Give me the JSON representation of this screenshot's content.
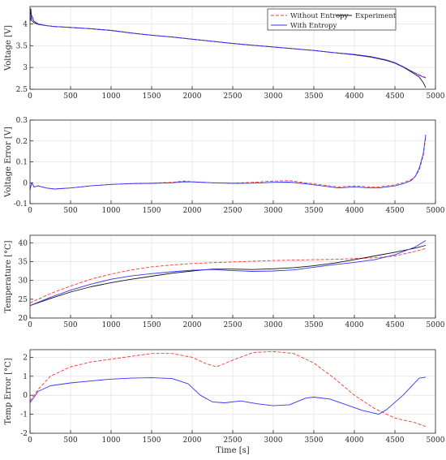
{
  "chart_data": [
    {
      "type": "line",
      "xlabel": "",
      "ylabel": "Voltage [V]",
      "xlim": [
        0,
        5000
      ],
      "ylim": [
        2.5,
        4.4
      ],
      "xticks": [
        0,
        500,
        1000,
        1500,
        2000,
        2500,
        3000,
        3500,
        4000,
        4500,
        5000
      ],
      "yticks": [
        2.5,
        3,
        3.5,
        4
      ],
      "grid": true,
      "legend": {
        "placement": "top-right",
        "columns": 2
      },
      "series": [
        {
          "name": "Without Entropy",
          "color": "#ff3333",
          "style": "dashed",
          "x": [
            0,
            20,
            50,
            100,
            200,
            300,
            500,
            750,
            1000,
            1250,
            1500,
            1750,
            2000,
            2250,
            2500,
            2750,
            3000,
            3250,
            3500,
            3750,
            4000,
            4200,
            4400,
            4500,
            4600,
            4700,
            4800,
            4850,
            4880
          ],
          "y": [
            4.05,
            4.2,
            4.06,
            4.0,
            3.96,
            3.94,
            3.92,
            3.89,
            3.85,
            3.79,
            3.74,
            3.7,
            3.65,
            3.6,
            3.55,
            3.51,
            3.47,
            3.43,
            3.39,
            3.34,
            3.3,
            3.25,
            3.17,
            3.11,
            3.02,
            2.92,
            2.83,
            2.79,
            2.77
          ]
        },
        {
          "name": "Experiment",
          "color": "#111111",
          "style": "solid",
          "x": [
            0,
            10,
            20,
            50,
            100,
            200,
            300,
            500,
            750,
            1000,
            1250,
            1500,
            1750,
            2000,
            2250,
            2500,
            2750,
            3000,
            3250,
            3500,
            3750,
            4000,
            4200,
            4400,
            4500,
            4600,
            4700,
            4800,
            4850,
            4880
          ],
          "y": [
            4.1,
            4.35,
            4.08,
            4.03,
            3.99,
            3.96,
            3.94,
            3.92,
            3.89,
            3.85,
            3.79,
            3.74,
            3.7,
            3.65,
            3.6,
            3.55,
            3.51,
            3.47,
            3.43,
            3.39,
            3.34,
            3.29,
            3.24,
            3.16,
            3.1,
            3.01,
            2.9,
            2.78,
            2.65,
            2.54
          ]
        },
        {
          "name": "With Entropy",
          "color": "#3333ff",
          "style": "solid",
          "x": [
            0,
            20,
            50,
            100,
            200,
            300,
            500,
            750,
            1000,
            1250,
            1500,
            1750,
            2000,
            2250,
            2500,
            2750,
            3000,
            3250,
            3500,
            3750,
            4000,
            4200,
            4400,
            4500,
            4600,
            4700,
            4800,
            4850,
            4880
          ],
          "y": [
            4.06,
            4.2,
            4.06,
            4.0,
            3.96,
            3.94,
            3.92,
            3.89,
            3.85,
            3.79,
            3.74,
            3.7,
            3.65,
            3.6,
            3.55,
            3.51,
            3.47,
            3.43,
            3.39,
            3.34,
            3.3,
            3.25,
            3.17,
            3.11,
            3.02,
            2.92,
            2.82,
            2.78,
            2.76
          ]
        }
      ]
    },
    {
      "type": "line",
      "xlabel": "",
      "ylabel": "Voltage Error [V]",
      "xlim": [
        0,
        5000
      ],
      "ylim": [
        -0.1,
        0.3
      ],
      "xticks": [
        0,
        500,
        1000,
        1500,
        2000,
        2500,
        3000,
        3500,
        4000,
        4500,
        5000
      ],
      "yticks": [
        -0.1,
        0,
        0.1,
        0.2,
        0.3
      ],
      "grid": true,
      "series": [
        {
          "color": "#ff3333",
          "style": "dashed",
          "x": [
            0,
            20,
            50,
            100,
            200,
            300,
            500,
            750,
            1000,
            1250,
            1500,
            1750,
            1900,
            2000,
            2250,
            2500,
            2750,
            3000,
            3200,
            3400,
            3600,
            3800,
            4000,
            4200,
            4300,
            4500,
            4600,
            4700,
            4750,
            4800,
            4850,
            4880
          ],
          "y": [
            -0.03,
            0.0,
            -0.02,
            -0.015,
            -0.025,
            -0.03,
            -0.025,
            -0.015,
            -0.008,
            -0.004,
            -0.002,
            0.002,
            0.008,
            0.005,
            0.0,
            -0.002,
            0.002,
            0.008,
            0.01,
            0.0,
            -0.01,
            -0.02,
            -0.015,
            -0.02,
            -0.02,
            -0.01,
            0.0,
            0.015,
            0.03,
            0.06,
            0.13,
            0.22
          ]
        },
        {
          "color": "#3333ff",
          "style": "solid",
          "x": [
            0,
            20,
            50,
            100,
            200,
            300,
            500,
            750,
            1000,
            1250,
            1500,
            1750,
            1900,
            2000,
            2250,
            2500,
            2750,
            3000,
            3200,
            3400,
            3600,
            3800,
            4000,
            4200,
            4300,
            4500,
            4600,
            4700,
            4750,
            4800,
            4850,
            4880
          ],
          "y": [
            -0.035,
            0.0,
            -0.02,
            -0.015,
            -0.025,
            -0.03,
            -0.025,
            -0.015,
            -0.008,
            -0.004,
            -0.003,
            0.0,
            0.005,
            0.004,
            0.0,
            -0.003,
            -0.002,
            0.002,
            0.003,
            -0.005,
            -0.015,
            -0.025,
            -0.02,
            -0.025,
            -0.025,
            -0.015,
            -0.005,
            0.01,
            0.03,
            0.07,
            0.14,
            0.23
          ]
        }
      ]
    },
    {
      "type": "line",
      "xlabel": "",
      "ylabel": "Temperature [°C]",
      "xlim": [
        0,
        5000
      ],
      "ylim": [
        20,
        42
      ],
      "xticks": [
        0,
        500,
        1000,
        1500,
        2000,
        2500,
        3000,
        3500,
        4000,
        4500,
        5000
      ],
      "yticks": [
        20,
        25,
        30,
        35,
        40
      ],
      "grid": true,
      "series": [
        {
          "color": "#ff3333",
          "style": "dashed",
          "x": [
            0,
            250,
            500,
            750,
            1000,
            1250,
            1500,
            1750,
            2000,
            2250,
            2500,
            2750,
            3000,
            3250,
            3500,
            3750,
            4000,
            4250,
            4500,
            4750,
            4880
          ],
          "y": [
            24,
            26.5,
            28.5,
            30.3,
            31.7,
            32.8,
            33.6,
            34.1,
            34.5,
            34.7,
            34.9,
            35.1,
            35.3,
            35.4,
            35.5,
            35.6,
            35.8,
            36.0,
            36.5,
            37.7,
            38.5
          ]
        },
        {
          "color": "#111111",
          "style": "solid",
          "x": [
            0,
            250,
            500,
            750,
            1000,
            1250,
            1500,
            1750,
            2000,
            2250,
            2500,
            2750,
            3000,
            3250,
            3500,
            3750,
            4000,
            4250,
            4500,
            4750,
            4880
          ],
          "y": [
            23.3,
            25.2,
            26.9,
            28.3,
            29.4,
            30.3,
            31.1,
            31.9,
            32.5,
            33.0,
            33.0,
            32.9,
            33.1,
            33.4,
            33.9,
            34.6,
            35.5,
            36.5,
            37.5,
            38.6,
            39.3
          ]
        },
        {
          "color": "#3333ff",
          "style": "solid",
          "x": [
            0,
            250,
            500,
            750,
            1000,
            1250,
            1500,
            1750,
            2000,
            2250,
            2500,
            2750,
            3000,
            3250,
            3500,
            3750,
            4000,
            4250,
            4500,
            4750,
            4880
          ],
          "y": [
            23.3,
            25.5,
            27.4,
            29.0,
            30.3,
            31.2,
            31.8,
            32.3,
            32.7,
            32.9,
            32.6,
            32.4,
            32.5,
            32.8,
            33.5,
            34.2,
            34.8,
            35.5,
            36.8,
            38.9,
            40.6
          ]
        }
      ]
    },
    {
      "type": "line",
      "xlabel": "Time [s]",
      "ylabel": "Temp Error [°C]",
      "xlim": [
        0,
        5000
      ],
      "ylim": [
        -2,
        2.4
      ],
      "xticks": [
        0,
        500,
        1000,
        1500,
        2000,
        2500,
        3000,
        3500,
        4000,
        4500,
        5000
      ],
      "yticks": [
        -2,
        -1,
        0,
        1,
        2
      ],
      "grid": true,
      "series": [
        {
          "color": "#ff3333",
          "style": "dashed",
          "x": [
            0,
            100,
            250,
            500,
            750,
            1000,
            1250,
            1500,
            1750,
            2000,
            2150,
            2300,
            2500,
            2750,
            3000,
            3250,
            3500,
            3750,
            4000,
            4250,
            4500,
            4750,
            4880
          ],
          "y": [
            -0.3,
            0.3,
            1.0,
            1.5,
            1.75,
            1.9,
            2.05,
            2.2,
            2.2,
            2.0,
            1.7,
            1.5,
            1.85,
            2.25,
            2.3,
            2.2,
            1.7,
            0.9,
            0.0,
            -0.7,
            -1.2,
            -1.45,
            -1.65
          ]
        },
        {
          "color": "#3333ff",
          "style": "solid",
          "x": [
            0,
            100,
            250,
            500,
            750,
            1000,
            1250,
            1500,
            1750,
            1950,
            2100,
            2250,
            2400,
            2600,
            2800,
            3000,
            3200,
            3400,
            3500,
            3700,
            3900,
            4100,
            4300,
            4400,
            4600,
            4800,
            4880
          ],
          "y": [
            -0.4,
            0.2,
            0.5,
            0.65,
            0.75,
            0.85,
            0.9,
            0.92,
            0.88,
            0.6,
            0.0,
            -0.35,
            -0.4,
            -0.3,
            -0.45,
            -0.55,
            -0.5,
            -0.15,
            -0.1,
            -0.2,
            -0.5,
            -0.8,
            -1.0,
            -0.75,
            0.0,
            0.9,
            0.95
          ]
        }
      ]
    }
  ]
}
